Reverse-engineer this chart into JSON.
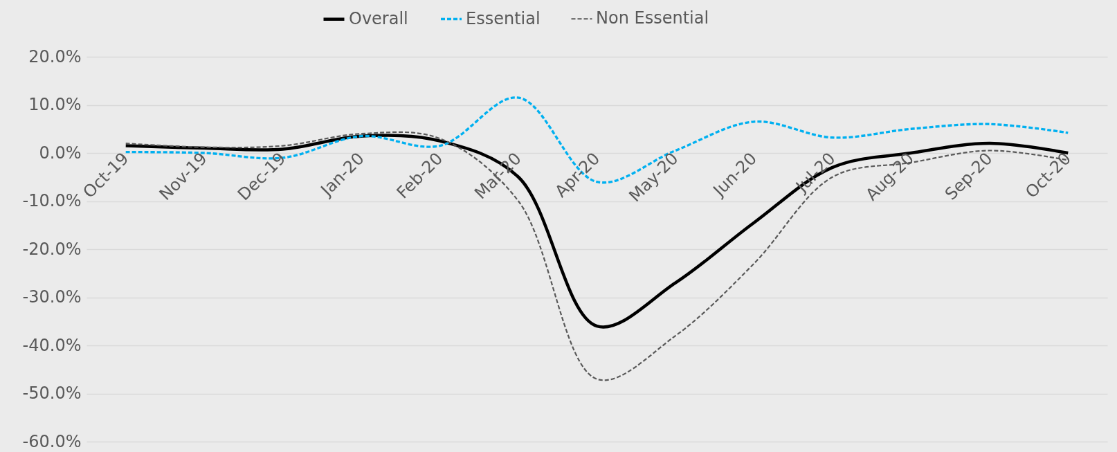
{
  "chart_data": {
    "type": "line",
    "categories": [
      "Oct-19",
      "Nov-19",
      "Dec-19",
      "Jan-20",
      "Feb-20",
      "Mar-20",
      "Apr-20",
      "May-20",
      "Jun-20",
      "Jul-20",
      "Aug-20",
      "Sep-20",
      "Oct-20"
    ],
    "series": [
      {
        "name": "Overall",
        "color": "#000000",
        "line_style": "solid",
        "values": [
          1.5,
          1.0,
          0.8,
          3.5,
          2.5,
          -5,
          -36,
          -27,
          -14.5,
          -3,
          0,
          2,
          0
        ]
      },
      {
        "name": "Essential",
        "color": "#00b0f0",
        "line_style": "dashed",
        "values": [
          0.2,
          0,
          -1,
          3.5,
          1.5,
          11.5,
          -6,
          0.5,
          6.5,
          3.2,
          5,
          6,
          4.2
        ]
      },
      {
        "name": "Non Essential",
        "color": "#595959",
        "line_style": "dashed",
        "values": [
          2,
          1.2,
          1.5,
          4,
          3,
          -10,
          -47,
          -38,
          -23,
          -5,
          -2,
          0.5,
          -1.5
        ]
      }
    ],
    "ylim": [
      -60,
      20
    ],
    "yticks": [
      {
        "value": -60,
        "label": "-60.0%"
      },
      {
        "value": -50,
        "label": "-50.0%"
      },
      {
        "value": -40,
        "label": "-40.0%"
      },
      {
        "value": -30,
        "label": "-30.0%"
      },
      {
        "value": -20,
        "label": "-20.0%"
      },
      {
        "value": -10,
        "label": "-10.0%"
      },
      {
        "value": 0,
        "label": "0.0%"
      },
      {
        "value": 10,
        "label": "10.0%"
      },
      {
        "value": 20,
        "label": "20.0%"
      }
    ],
    "grid": "y",
    "legend": "top",
    "marker": "none"
  }
}
